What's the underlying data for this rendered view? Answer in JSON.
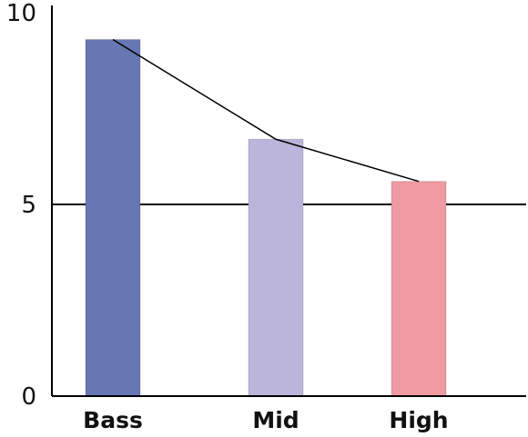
{
  "chart_data": {
    "type": "bar",
    "categories": [
      "Bass",
      "Mid",
      "High"
    ],
    "values": [
      9.3,
      6.7,
      5.6
    ],
    "ylim": [
      0,
      10
    ],
    "yticks": [
      "0",
      "5",
      "10"
    ],
    "reference_line": 5,
    "overlay_line": true,
    "grid": false,
    "title": "",
    "xlabel": "",
    "ylabel": "",
    "colors": {
      "bars": [
        "#6677b4",
        "#bbb5db",
        "#ee9aa0"
      ],
      "axis": "#000000",
      "line": "#000000"
    }
  }
}
